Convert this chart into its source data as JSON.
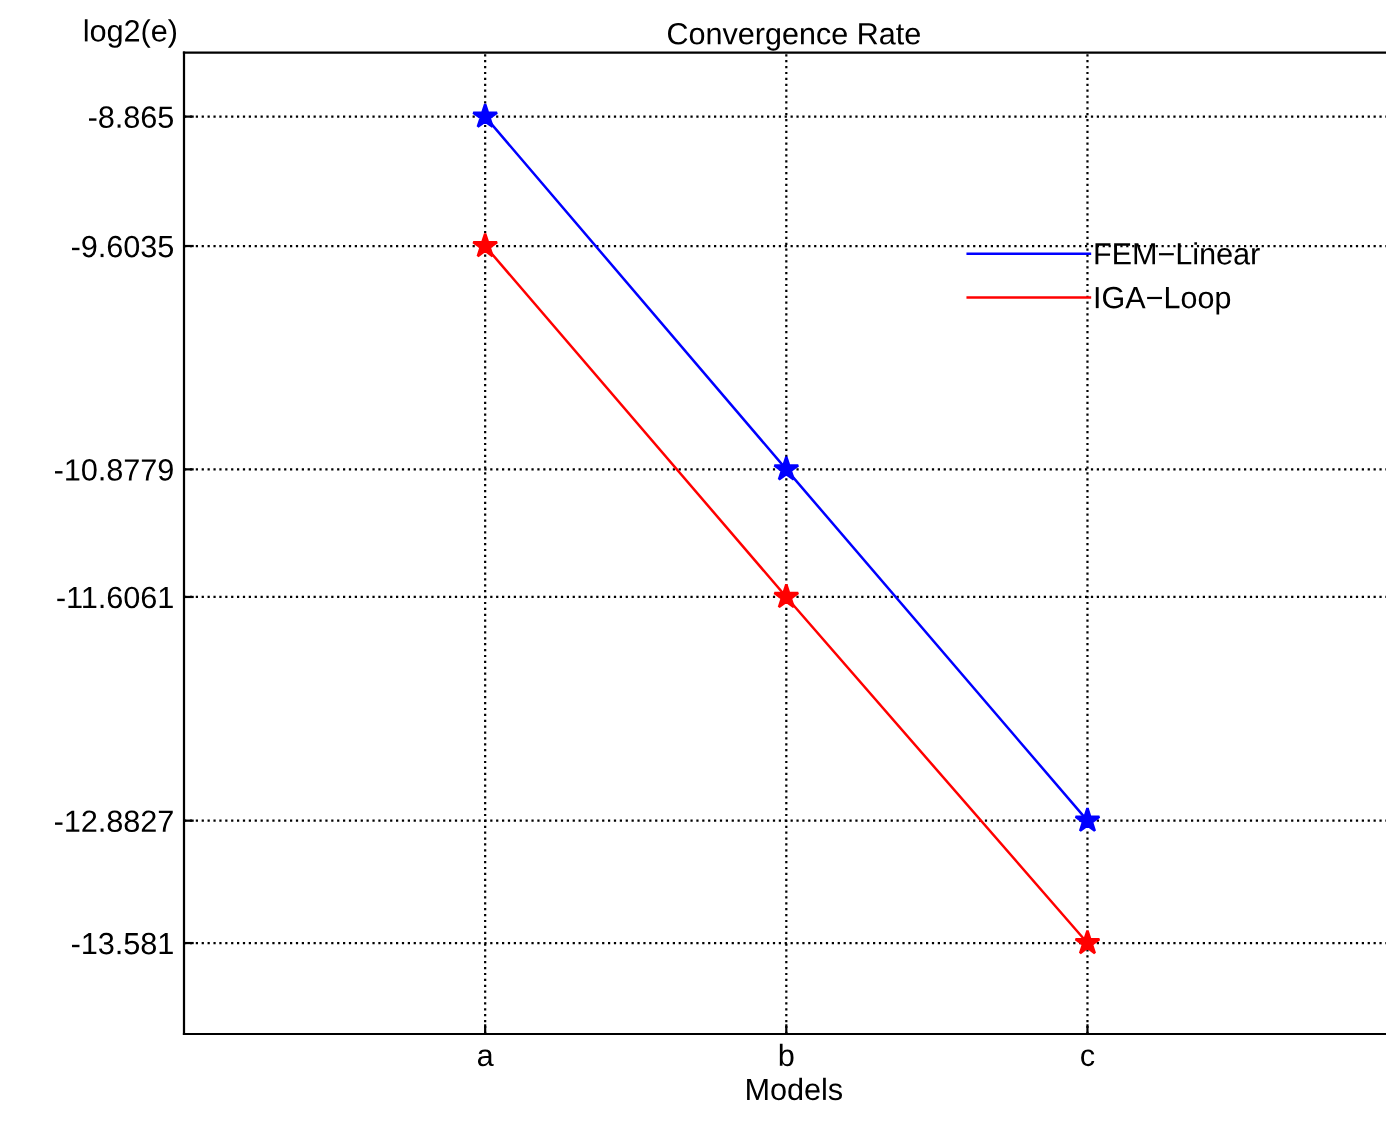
{
  "chart_data": {
    "type": "line",
    "title": "Convergence Rate",
    "xlabel": "Models",
    "ylabel": "log2(e)",
    "categories": [
      "a",
      "b",
      "c"
    ],
    "series": [
      {
        "name": "FEM−Linear",
        "color": "#0000ff",
        "values": [
          -8.865,
          -10.8779,
          -12.8827
        ]
      },
      {
        "name": "IGA−Loop",
        "color": "#ff0000",
        "values": [
          -9.6035,
          -11.6061,
          -13.581
        ]
      }
    ],
    "ylim": [
      -14.1,
      -8.5
    ],
    "yticks": [
      -13.581,
      -12.8827,
      -11.6061,
      -10.8779,
      -9.6035,
      -8.865
    ],
    "grid": true,
    "legend": "right",
    "marker": "star",
    "line_style": "solid"
  }
}
